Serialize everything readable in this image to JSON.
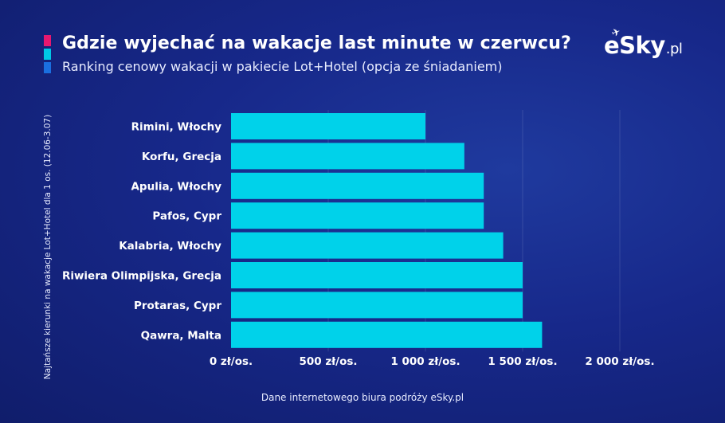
{
  "header": {
    "title": "Gdzie wyjechać na wakacje last minute w czerwcu?",
    "subtitle": "Ranking cenowy wakacji w pakiecie Lot+Hotel (opcja ze śniadaniem)",
    "accent_colors": [
      "#e6186f",
      "#00c8e6",
      "#1a6fe0"
    ]
  },
  "logo": {
    "name": "eSky",
    "tld": ".pl"
  },
  "footer": {
    "source": "Dane internetowego biura podróży eSky.pl"
  },
  "colors": {
    "bar": "#00d2ea",
    "background": "#17288a",
    "text": "#ffffff"
  },
  "chart_data": {
    "type": "bar",
    "orientation": "horizontal",
    "title": "Gdzie wyjechać na wakacje last minute w czerwcu?",
    "ylabel": "Najtańsze kierunki na wakacje Lot+Hotel dla 1 os. (12.06-3.07)",
    "xlabel": "",
    "categories": [
      "Rimini, Włochy",
      "Korfu, Grecja",
      "Apulia, Włochy",
      "Pafos, Cypr",
      "Kalabria, Włochy",
      "Riwiera Olimpijska, Grecja",
      "Protaras, Cypr",
      "Qawra, Malta"
    ],
    "values": [
      1000,
      1200,
      1300,
      1300,
      1400,
      1500,
      1500,
      1600
    ],
    "xlim": [
      0,
      2200
    ],
    "xticks": [
      0,
      500,
      1000,
      1500,
      2000
    ],
    "xtick_labels": [
      "0 zł/os.",
      "500 zł/os.",
      "1 000 zł/os.",
      "1 500 zł/os.",
      "2 000 zł/os."
    ],
    "grid": true
  }
}
